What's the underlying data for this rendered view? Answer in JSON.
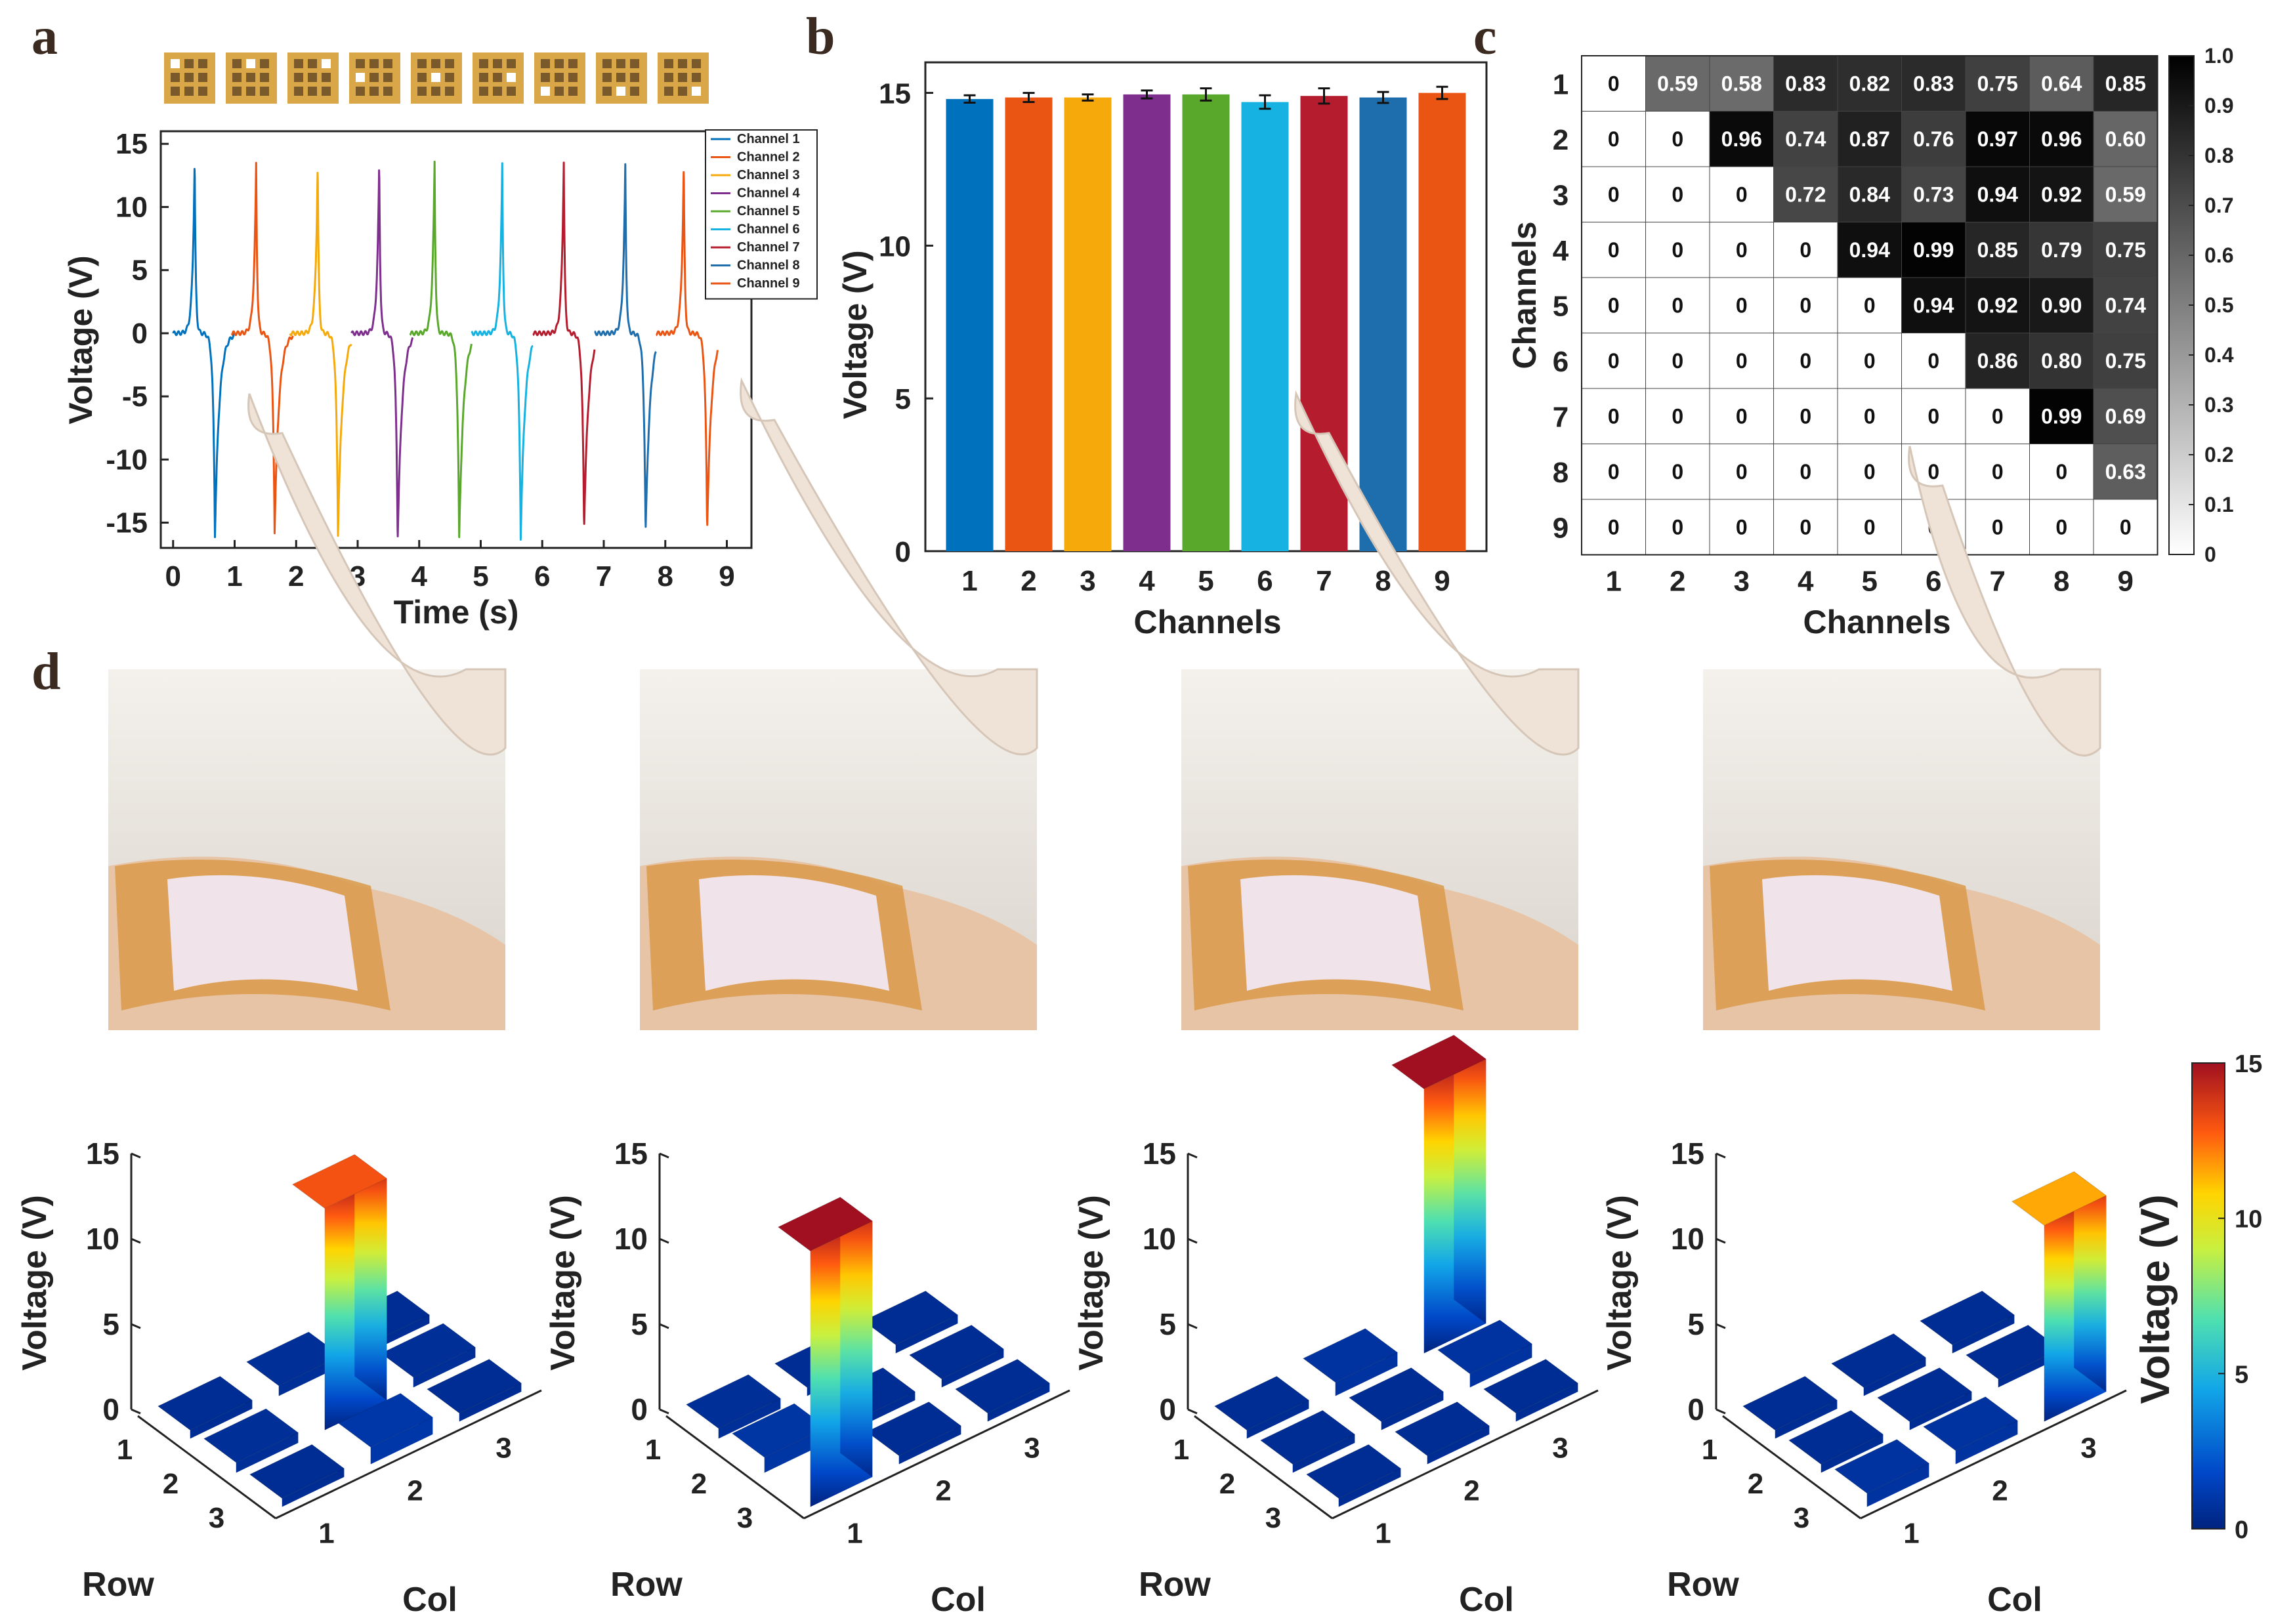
{
  "panel_labels": [
    "a",
    "b",
    "c",
    "d"
  ],
  "colors": {
    "channels": [
      "#0072BD",
      "#EA5514",
      "#F5A90B",
      "#7E2F8E",
      "#59A82B",
      "#16B3E2",
      "#B51D2E",
      "#1E6EAE",
      "#EA5514"
    ],
    "pad_gold": "#d9a648",
    "pad_dark": "#7a5a2a",
    "axis": "#222222"
  },
  "chart_data": [
    {
      "id": "a",
      "type": "line",
      "xlabel": "Time (s)",
      "ylabel": "Voltage (V)",
      "xlim": [
        -0.2,
        9.4
      ],
      "ylim": [
        -17,
        16
      ],
      "xticks": [
        0,
        1,
        2,
        3,
        4,
        5,
        6,
        7,
        8,
        9
      ],
      "yticks": [
        -15,
        -10,
        -5,
        0,
        5,
        10,
        15
      ],
      "legend_position": "top-right",
      "series": [
        {
          "name": "Channel 1",
          "start": 0.0,
          "peak_t": 0.35,
          "peak": 13.8,
          "trough_t": 0.68,
          "trough": -16.0
        },
        {
          "name": "Channel 2",
          "start": 0.95,
          "peak_t": 1.35,
          "peak": 13.5,
          "trough_t": 1.65,
          "trough": -15.7
        },
        {
          "name": "Channel 3",
          "start": 1.9,
          "peak_t": 2.35,
          "peak": 13.5,
          "trough_t": 2.68,
          "trough": -15.9
        },
        {
          "name": "Channel 4",
          "start": 2.9,
          "peak_t": 3.35,
          "peak": 13.6,
          "trough_t": 3.65,
          "trough": -16.4
        },
        {
          "name": "Channel 5",
          "start": 3.85,
          "peak_t": 4.25,
          "peak": 13.6,
          "trough_t": 4.65,
          "trough": -16.3
        },
        {
          "name": "Channel 6",
          "start": 4.85,
          "peak_t": 5.35,
          "peak": 13.4,
          "trough_t": 5.65,
          "trough": -16.2
        },
        {
          "name": "Channel 7",
          "start": 5.85,
          "peak_t": 6.35,
          "peak": 13.6,
          "trough_t": 6.68,
          "trough": -15.4
        },
        {
          "name": "Channel 8",
          "start": 6.85,
          "peak_t": 7.35,
          "peak": 13.3,
          "trough_t": 7.68,
          "trough": -15.9
        },
        {
          "name": "Channel 9",
          "start": 7.85,
          "peak_t": 8.3,
          "peak": 13.4,
          "trough_t": 8.68,
          "trough": -15.5
        }
      ],
      "pad_highlights": [
        [
          0,
          0
        ],
        [
          0,
          1
        ],
        [
          0,
          2
        ],
        [
          1,
          0
        ],
        [
          1,
          1
        ],
        [
          1,
          2
        ],
        [
          2,
          0
        ],
        [
          2,
          1
        ],
        [
          2,
          2
        ]
      ]
    },
    {
      "id": "b",
      "type": "bar",
      "xlabel": "Channels",
      "ylabel": "Voltage (V)",
      "categories": [
        "1",
        "2",
        "3",
        "4",
        "5",
        "6",
        "7",
        "8",
        "9"
      ],
      "values": [
        14.8,
        14.85,
        14.85,
        14.95,
        14.95,
        14.7,
        14.9,
        14.85,
        15.0
      ],
      "errors": [
        0.12,
        0.15,
        0.1,
        0.13,
        0.2,
        0.22,
        0.25,
        0.18,
        0.2
      ],
      "ylim": [
        0,
        16
      ],
      "yticks": [
        0,
        5,
        10,
        15
      ]
    },
    {
      "id": "c",
      "type": "heatmap",
      "xlabel": "Channels",
      "ylabel": "Channels",
      "labels": [
        "1",
        "2",
        "3",
        "4",
        "5",
        "6",
        "7",
        "8",
        "9"
      ],
      "matrix": [
        [
          "0",
          "0.59",
          "0.58",
          "0.83",
          "0.82",
          "0.83",
          "0.75",
          "0.64",
          "0.85"
        ],
        [
          "0",
          "0",
          "0.96",
          "0.74",
          "0.87",
          "0.76",
          "0.97",
          "0.96",
          "0.60"
        ],
        [
          "0",
          "0",
          "0",
          "0.72",
          "0.84",
          "0.73",
          "0.94",
          "0.92",
          "0.59"
        ],
        [
          "0",
          "0",
          "0",
          "0",
          "0.94",
          "0.99",
          "0.85",
          "0.79",
          "0.75"
        ],
        [
          "0",
          "0",
          "0",
          "0",
          "0",
          "0.94",
          "0.92",
          "0.90",
          "0.74"
        ],
        [
          "0",
          "0",
          "0",
          "0",
          "0",
          "0",
          "0.86",
          "0.80",
          "0.75"
        ],
        [
          "0",
          "0",
          "0",
          "0",
          "0",
          "0",
          "0",
          "0.99",
          "0.69"
        ],
        [
          "0",
          "0",
          "0",
          "0",
          "0",
          "0",
          "0",
          "0",
          "0.63"
        ],
        [
          "0",
          "0",
          "0",
          "0",
          "0",
          "0",
          "0",
          "0",
          "0"
        ]
      ],
      "colorbar_ticks": [
        "0",
        "0.1",
        "0.2",
        "0.3",
        "0.4",
        "0.5",
        "0.6",
        "0.7",
        "0.8",
        "0.9",
        "1.0"
      ],
      "colorbar_range": [
        0,
        1
      ]
    },
    {
      "id": "d",
      "type": "bar3d",
      "zlabel": "Voltage (V)",
      "row_label": "Row",
      "col_label": "Col",
      "zticks": [
        0,
        5,
        10,
        15
      ],
      "row_ticks": [
        "1",
        "2",
        "3"
      ],
      "col_ticks": [
        "1",
        "2",
        "3"
      ],
      "colorbar_label": "Voltage (V)",
      "colorbar_ticks": [
        0,
        5,
        10,
        15
      ],
      "grids": [
        [
          [
            0.5,
            0.6,
            0.5
          ],
          [
            0.6,
            13.0,
            0.6
          ],
          [
            0.5,
            1.0,
            0.5
          ]
        ],
        [
          [
            0.6,
            0.5,
            0.5
          ],
          [
            0.9,
            0.5,
            0.5
          ],
          [
            15.0,
            0.5,
            0.5
          ]
        ],
        [
          [
            0.5,
            0.8,
            15.5
          ],
          [
            0.5,
            0.5,
            0.8
          ],
          [
            0.5,
            0.5,
            0.5
          ]
        ],
        [
          [
            0.5,
            0.5,
            0.5
          ],
          [
            0.5,
            0.5,
            0.5
          ],
          [
            0.8,
            0.8,
            11.5
          ]
        ]
      ]
    }
  ]
}
